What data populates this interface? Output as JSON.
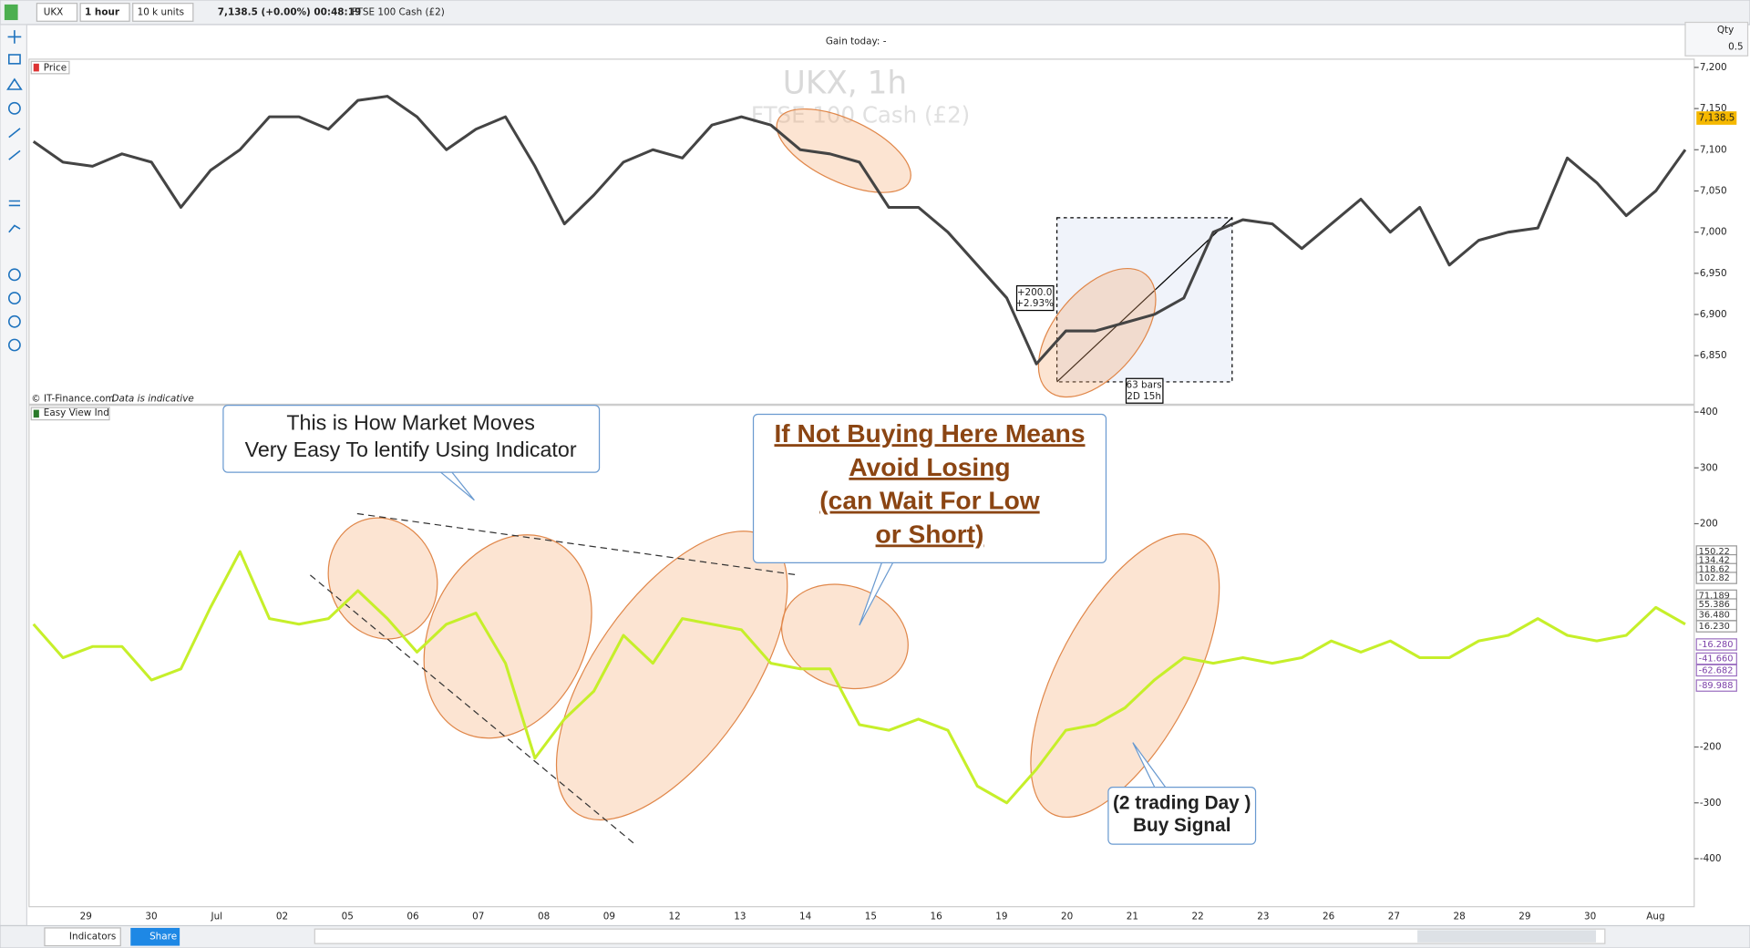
{
  "toolbar": {
    "symbol": "UKX",
    "timeframe": "1 hour",
    "units": "10 k units",
    "quote": "7,138.5 (+0.00%) 00:48:19",
    "instrument": "FTSE 100 Cash (£2)"
  },
  "gain": "Gain today:  -",
  "qty": {
    "label": "Qty",
    "value": "0.5"
  },
  "x_axis": {
    "labels": [
      "29",
      "30",
      "Jul",
      "02",
      "05",
      "06",
      "07",
      "08",
      "09",
      "12",
      "13",
      "14",
      "15",
      "16",
      "19",
      "20",
      "21",
      "22",
      "23",
      "26",
      "27",
      "28",
      "29",
      "30",
      "Aug"
    ]
  },
  "chart_data": [
    {
      "type": "line",
      "title": "Price",
      "watermark": "UKX, 1h",
      "watermark_subtitle": "FTSE 100 Cash (£2)",
      "color": "#444444",
      "values": [
        7110,
        7085,
        7080,
        7095,
        7085,
        7030,
        7075,
        7100,
        7140,
        7140,
        7125,
        7160,
        7165,
        7140,
        7100,
        7125,
        7140,
        7080,
        7010,
        7045,
        7085,
        7100,
        7090,
        7130,
        7140,
        7130,
        7100,
        7095,
        7085,
        7030,
        7030,
        7000,
        6960,
        6920,
        6840,
        6880,
        6880,
        6890,
        6900,
        6920,
        7000,
        7015,
        7010,
        6980,
        7010,
        7040,
        7000,
        7030,
        6960,
        6990,
        7000,
        7005,
        7090,
        7060,
        7020,
        7050,
        7100
      ],
      "ylim": [
        6791,
        7210
      ],
      "yticks": [
        {
          "value": 7200,
          "label": "7,200"
        },
        {
          "value": 7150,
          "label": "7,150"
        },
        {
          "value": 7100,
          "label": "7,100"
        },
        {
          "value": 7050,
          "label": "7,050"
        },
        {
          "value": 7000,
          "label": "7,000"
        },
        {
          "value": 6950,
          "label": "6,950"
        },
        {
          "value": 6900,
          "label": "6,900"
        },
        {
          "value": 6850,
          "label": "6,850"
        }
      ],
      "last_price": {
        "value": 7138.5,
        "label": "7,138.5"
      },
      "measure": {
        "change": "+200.0",
        "percent": "+2.93%",
        "bars": "63 bars",
        "duration": "2D 15h"
      },
      "footnote": "© IT-Finance.com",
      "footnote_note": "Data is indicative"
    },
    {
      "type": "line",
      "title": "Easy View Ind",
      "color": "#c6ef2a",
      "values": [
        20,
        -40,
        -20,
        -20,
        -80,
        -60,
        50,
        150,
        30,
        20,
        30,
        80,
        30,
        -30,
        20,
        40,
        -50,
        -220,
        -150,
        -100,
        0,
        -50,
        30,
        20,
        10,
        -50,
        -60,
        -60,
        -160,
        -170,
        -150,
        -170,
        -270,
        -300,
        -240,
        -170,
        -160,
        -130,
        -80,
        -40,
        -50,
        -40,
        -50,
        -40,
        -10,
        -30,
        -10,
        -40,
        -40,
        -10,
        0,
        30,
        0,
        -10,
        0,
        50,
        20
      ],
      "ylim": [
        -486,
        412
      ],
      "yticks": [
        400,
        300,
        200,
        -200,
        -300,
        -400
      ],
      "levels": [
        {
          "value": 150.22,
          "label": "150.22"
        },
        {
          "value": 134.42,
          "label": "134.42"
        },
        {
          "value": 118.62,
          "label": "118.62"
        },
        {
          "value": 102.82,
          "label": "102.82"
        },
        {
          "value": 71.189,
          "label": "71.189"
        },
        {
          "value": 55.386,
          "label": "55.386"
        },
        {
          "value": 36.48,
          "label": "36.480"
        },
        {
          "value": 16.23,
          "label": "16.230"
        },
        {
          "value": -16.28,
          "label": "-16.280"
        },
        {
          "value": -41.66,
          "label": "-41.660"
        },
        {
          "value": -62.682,
          "label": "-62.682"
        },
        {
          "value": -89.988,
          "label": "-89.988"
        }
      ],
      "annotations": [
        {
          "lines": [
            "This is How Market Moves",
            "Very Easy To lentify Using Indicator"
          ]
        },
        {
          "lines": [
            "If Not Buying Here Means ",
            "Avoid Losing ",
            "(can Wait For Low",
            "or Short)"
          ]
        },
        {
          "lines": [
            "(2 trading Day )",
            "Buy Signal"
          ]
        }
      ]
    }
  ],
  "bottom_toolbar": {
    "indicators": "Indicators",
    "share": "Share"
  }
}
